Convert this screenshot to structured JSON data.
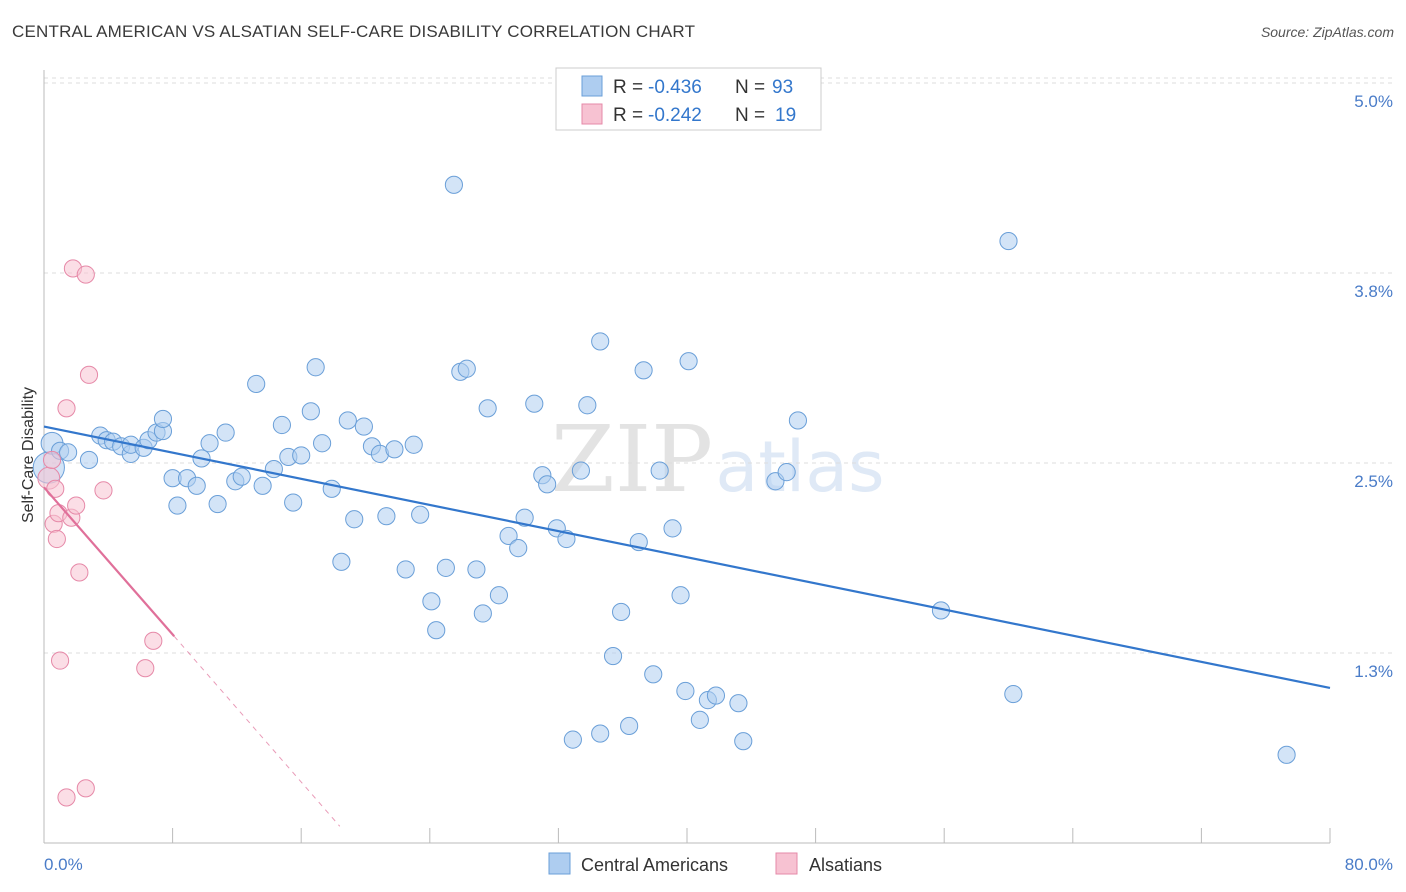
{
  "header": {
    "title": "CENTRAL AMERICAN VS ALSATIAN SELF-CARE DISABILITY CORRELATION CHART",
    "source": "Source: ZipAtlas.com"
  },
  "colors": {
    "blue_fill": "#aecdf0",
    "blue_stroke": "#6a9fd8",
    "blue_line": "#3377cc",
    "pink_fill": "#f7c2d2",
    "pink_stroke": "#e689a8",
    "pink_line": "#e0709a",
    "tick_label": "#4a7cc8",
    "grid": "#dddddd"
  },
  "legend": {
    "rows": [
      {
        "r_label": "R = ",
        "r_value": "-0.436",
        "n_label": "N = ",
        "n_value": "93",
        "series": "blue"
      },
      {
        "r_label": "R = ",
        "r_value": "-0.242",
        "n_label": "N = ",
        "n_value": "19",
        "series": "pink"
      }
    ]
  },
  "watermark": {
    "zip": "ZIP",
    "atlas": "atlas"
  },
  "chart_data": {
    "type": "scatter",
    "title": "CENTRAL AMERICAN VS ALSATIAN SELF-CARE DISABILITY CORRELATION CHART",
    "xlabel": "",
    "ylabel": "Self-Care Disability",
    "xlim": [
      0,
      80
    ],
    "ylim": [
      0,
      5.2
    ],
    "x_tick_labels": {
      "left": "0.0%",
      "right": "80.0%"
    },
    "x_minor_ticks": [
      8,
      16,
      24,
      32,
      40,
      48,
      56,
      64,
      72,
      80
    ],
    "y_ticks": [
      {
        "value": 1.25,
        "label": "1.3%"
      },
      {
        "value": 2.5,
        "label": "2.5%"
      },
      {
        "value": 3.75,
        "label": "3.8%"
      },
      {
        "value": 5.0,
        "label": "5.0%"
      }
    ],
    "grid": true,
    "legend_position": "top-center",
    "series": [
      {
        "name": "Central Americans",
        "color": "blue",
        "R": -0.436,
        "N": 93,
        "trend": {
          "x0": 0,
          "y0": 2.74,
          "x1": 80,
          "y1": 1.02
        },
        "points": [
          [
            0.3,
            2.47,
            20
          ],
          [
            0.5,
            2.63,
            14
          ],
          [
            1.0,
            2.58,
            11
          ],
          [
            1.5,
            2.57,
            11
          ],
          [
            2.8,
            2.52,
            11
          ],
          [
            3.5,
            2.68,
            11
          ],
          [
            3.9,
            2.65,
            11
          ],
          [
            4.3,
            2.64,
            11
          ],
          [
            4.8,
            2.61,
            11
          ],
          [
            5.4,
            2.56,
            11
          ],
          [
            5.4,
            2.62,
            11
          ],
          [
            6.2,
            2.6,
            11
          ],
          [
            6.5,
            2.65,
            11
          ],
          [
            7.0,
            2.7,
            11
          ],
          [
            7.4,
            2.71,
            11
          ],
          [
            7.4,
            2.79,
            11
          ],
          [
            8.0,
            2.4,
            11
          ],
          [
            8.3,
            2.22,
            11
          ],
          [
            8.9,
            2.4,
            11
          ],
          [
            9.5,
            2.35,
            11
          ],
          [
            9.8,
            2.53,
            11
          ],
          [
            10.3,
            2.63,
            11
          ],
          [
            10.8,
            2.23,
            11
          ],
          [
            11.3,
            2.7,
            11
          ],
          [
            11.9,
            2.38,
            11
          ],
          [
            12.3,
            2.41,
            11
          ],
          [
            13.2,
            3.02,
            11
          ],
          [
            13.6,
            2.35,
            11
          ],
          [
            14.3,
            2.46,
            11
          ],
          [
            14.8,
            2.75,
            11
          ],
          [
            15.2,
            2.54,
            11
          ],
          [
            15.5,
            2.24,
            11
          ],
          [
            16.0,
            2.55,
            11
          ],
          [
            16.6,
            2.84,
            11
          ],
          [
            16.9,
            3.13,
            11
          ],
          [
            17.3,
            2.63,
            11
          ],
          [
            17.9,
            2.33,
            11
          ],
          [
            18.5,
            1.85,
            11
          ],
          [
            18.9,
            2.78,
            11
          ],
          [
            19.3,
            2.13,
            11
          ],
          [
            19.9,
            2.74,
            11
          ],
          [
            20.4,
            2.61,
            11
          ],
          [
            20.9,
            2.56,
            11
          ],
          [
            21.3,
            2.15,
            11
          ],
          [
            21.8,
            2.59,
            11
          ],
          [
            22.5,
            1.8,
            11
          ],
          [
            23.0,
            2.62,
            11
          ],
          [
            23.4,
            2.16,
            11
          ],
          [
            24.1,
            1.59,
            11
          ],
          [
            24.4,
            1.4,
            11
          ],
          [
            25.0,
            1.81,
            11
          ],
          [
            25.5,
            4.33,
            11
          ],
          [
            25.9,
            3.1,
            11
          ],
          [
            26.3,
            3.12,
            11
          ],
          [
            26.9,
            1.8,
            11
          ],
          [
            27.3,
            1.51,
            11
          ],
          [
            27.6,
            2.86,
            11
          ],
          [
            28.3,
            1.63,
            11
          ],
          [
            28.9,
            2.02,
            11
          ],
          [
            29.5,
            1.94,
            11
          ],
          [
            29.9,
            2.14,
            11
          ],
          [
            30.5,
            2.89,
            11
          ],
          [
            31.0,
            2.42,
            11
          ],
          [
            31.3,
            2.36,
            11
          ],
          [
            31.9,
            2.07,
            11
          ],
          [
            32.5,
            2.0,
            11
          ],
          [
            32.9,
            0.68,
            11
          ],
          [
            33.4,
            2.45,
            11
          ],
          [
            33.8,
            2.88,
            11
          ],
          [
            34.6,
            3.3,
            11
          ],
          [
            34.6,
            0.72,
            11
          ],
          [
            35.4,
            1.23,
            11
          ],
          [
            35.9,
            1.52,
            11
          ],
          [
            36.4,
            0.77,
            11
          ],
          [
            37.0,
            1.98,
            11
          ],
          [
            37.3,
            3.11,
            11
          ],
          [
            37.9,
            1.11,
            11
          ],
          [
            38.3,
            2.45,
            11
          ],
          [
            39.1,
            2.07,
            11
          ],
          [
            39.6,
            1.63,
            11
          ],
          [
            39.9,
            1.0,
            11
          ],
          [
            40.1,
            3.17,
            11
          ],
          [
            40.8,
            0.81,
            11
          ],
          [
            41.3,
            0.94,
            11
          ],
          [
            41.8,
            0.97,
            11
          ],
          [
            43.2,
            0.92,
            11
          ],
          [
            43.5,
            0.67,
            11
          ],
          [
            45.5,
            2.38,
            11
          ],
          [
            46.2,
            2.44,
            11
          ],
          [
            46.9,
            2.78,
            11
          ],
          [
            55.8,
            1.53,
            11
          ],
          [
            60.0,
            3.96,
            11
          ],
          [
            60.3,
            0.98,
            11
          ],
          [
            77.3,
            0.58,
            11
          ]
        ]
      },
      {
        "name": "Alsatians",
        "color": "pink",
        "R": -0.242,
        "N": 19,
        "trend": {
          "x0": 0,
          "y0": 2.34,
          "x1": 8.1,
          "y1": 1.36
        },
        "trend_dashed_end": {
          "x": 18.4,
          "y": 0.11
        },
        "points": [
          [
            0.3,
            2.4,
            14
          ],
          [
            0.5,
            2.52,
            11
          ],
          [
            0.6,
            2.1,
            11
          ],
          [
            0.7,
            2.33,
            11
          ],
          [
            0.8,
            2.0,
            11
          ],
          [
            0.9,
            2.17,
            11
          ],
          [
            1.0,
            1.2,
            11
          ],
          [
            1.4,
            2.86,
            11
          ],
          [
            1.4,
            0.3,
            11
          ],
          [
            1.7,
            2.14,
            11
          ],
          [
            1.8,
            3.78,
            11
          ],
          [
            2.0,
            2.22,
            11
          ],
          [
            2.2,
            1.78,
            11
          ],
          [
            2.6,
            0.36,
            11
          ],
          [
            2.6,
            3.74,
            11
          ],
          [
            2.8,
            3.08,
            11
          ],
          [
            6.3,
            1.15,
            11
          ],
          [
            6.8,
            1.33,
            11
          ],
          [
            3.7,
            2.32,
            11
          ]
        ]
      }
    ]
  },
  "bottom_legend": {
    "items": [
      {
        "label": "Central Americans",
        "series": "blue"
      },
      {
        "label": "Alsatians",
        "series": "pink"
      }
    ]
  }
}
